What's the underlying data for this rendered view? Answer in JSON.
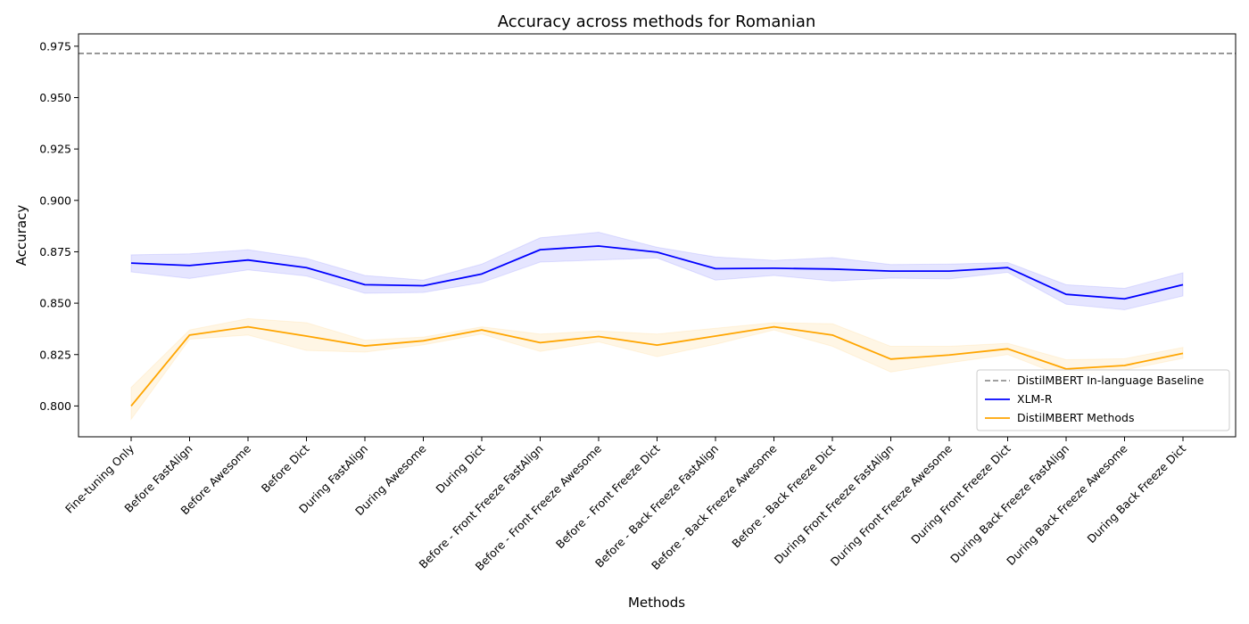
{
  "chart_data": {
    "type": "line",
    "title": "Accuracy across methods for Romanian",
    "xlabel": "Methods",
    "ylabel": "Accuracy",
    "ylim": [
      0.785,
      0.981
    ],
    "yticks": [
      0.8,
      0.825,
      0.85,
      0.875,
      0.9,
      0.925,
      0.95,
      0.975
    ],
    "ytick_labels": [
      "0.800",
      "0.825",
      "0.850",
      "0.875",
      "0.900",
      "0.925",
      "0.950",
      "0.975"
    ],
    "grid": false,
    "legend_position": "lower-right",
    "categories": [
      "Fine-tuning Only",
      "Before FastAlign",
      "Before Awesome",
      "Before Dict",
      "During FastAlign",
      "During Awesome",
      "During Dict",
      "Before - Front Freeze FastAlign",
      "Before - Front Freeze Awesome",
      "Before - Front Freeze Dict",
      "Before - Back Freeze FastAlign",
      "Before - Back Freeze Awesome",
      "Before - Back Freeze Dict",
      "During Front Freeze FastAlign",
      "During Front Freeze Awesome",
      "During Front Freeze Dict",
      "During Back Freeze FastAlign",
      "During Back Freeze Awesome",
      "During Back Freeze Dict"
    ],
    "baseline": {
      "name": "DistilMBERT In-language Baseline",
      "value": 0.9715,
      "color": "#808080",
      "style": "dashed"
    },
    "series": [
      {
        "name": "XLM-R",
        "color": "#0000ff",
        "values": [
          0.8695,
          0.8683,
          0.871,
          0.8673,
          0.859,
          0.8585,
          0.8642,
          0.876,
          0.8778,
          0.8748,
          0.8668,
          0.867,
          0.8666,
          0.8656,
          0.8656,
          0.8673,
          0.8543,
          0.8521,
          0.859
        ],
        "lower": [
          0.8652,
          0.862,
          0.8662,
          0.8632,
          0.8548,
          0.8552,
          0.86,
          0.87,
          0.871,
          0.872,
          0.8612,
          0.8635,
          0.8608,
          0.8622,
          0.8618,
          0.865,
          0.8495,
          0.8468,
          0.8535
        ],
        "upper": [
          0.8735,
          0.874,
          0.876,
          0.8718,
          0.8635,
          0.8612,
          0.869,
          0.8818,
          0.8845,
          0.8772,
          0.8725,
          0.8708,
          0.8722,
          0.8688,
          0.869,
          0.8698,
          0.859,
          0.8572,
          0.8648
        ]
      },
      {
        "name": "DistilMBERT Methods",
        "color": "#ffa500",
        "values": [
          0.8,
          0.8345,
          0.8385,
          0.834,
          0.8292,
          0.8317,
          0.837,
          0.8308,
          0.8338,
          0.8296,
          0.834,
          0.8385,
          0.8345,
          0.8228,
          0.8248,
          0.8278,
          0.818,
          0.8197,
          0.8256
        ],
        "lower": [
          0.7935,
          0.8325,
          0.8345,
          0.827,
          0.8262,
          0.8297,
          0.835,
          0.8265,
          0.8312,
          0.824,
          0.83,
          0.837,
          0.829,
          0.8165,
          0.821,
          0.825,
          0.814,
          0.8175,
          0.8232
        ],
        "upper": [
          0.809,
          0.837,
          0.8425,
          0.8405,
          0.832,
          0.8335,
          0.8385,
          0.835,
          0.8365,
          0.835,
          0.8378,
          0.8405,
          0.84,
          0.829,
          0.829,
          0.8305,
          0.8225,
          0.823,
          0.8285
        ]
      }
    ]
  }
}
